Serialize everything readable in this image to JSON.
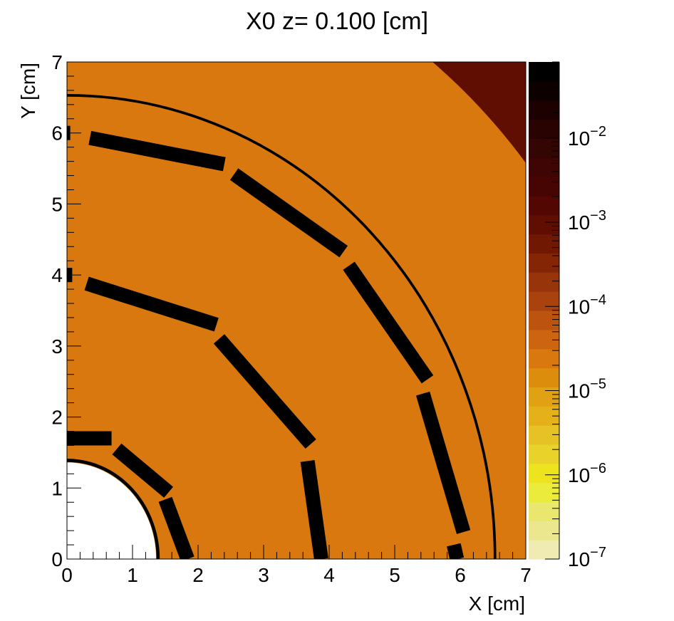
{
  "chart_data": {
    "type": "heatmap",
    "title": "X0 z=  0.100 [cm]",
    "xlabel": "X [cm]",
    "ylabel": "Y [cm]",
    "xlim": [
      0,
      7
    ],
    "ylim": [
      0,
      7
    ],
    "x_ticks": [
      "0",
      "1",
      "2",
      "3",
      "4",
      "5",
      "6",
      "7"
    ],
    "y_ticks": [
      "0",
      "1",
      "2",
      "3",
      "4",
      "5",
      "6",
      "7"
    ],
    "colorbar": {
      "scale": "log",
      "range": [
        1e-07,
        0.08
      ],
      "tick_bases": [
        "10",
        "10",
        "10",
        "10",
        "10",
        "10"
      ],
      "tick_exponents": [
        "−7",
        "−6",
        "−5",
        "−4",
        "−3",
        "−2"
      ],
      "palette": [
        "#f0ebb2",
        "#ebe78f",
        "#e9e76e",
        "#ebeb3b",
        "#eee31f",
        "#e9d22a",
        "#e6c226",
        "#e4b11b",
        "#e0a214",
        "#dd8d0c",
        "#d9780e",
        "#cc6410",
        "#bc5410",
        "#aa420d",
        "#983409",
        "#842606",
        "#711803",
        "#600e02",
        "#520702",
        "#460402",
        "#3e0504",
        "#330503",
        "#290302",
        "#1d0101",
        "#0d0000",
        "#000000"
      ]
    },
    "background_value": 3e-05,
    "regions": [
      {
        "name": "beam-pipe-hole",
        "shape": "disc",
        "r": 1.36,
        "value": 0
      },
      {
        "name": "beam-pipe-wall",
        "shape": "ring",
        "r": 1.39,
        "thickness": 0.05,
        "value": 0.05
      },
      {
        "name": "outer-shell",
        "shape": "ring",
        "r": 6.53,
        "thickness": 0.04,
        "value": 0.05
      },
      {
        "name": "far-corner",
        "shape": "outside-radius",
        "r": 8.95,
        "value": 0.001
      },
      {
        "name": "layer-1-staves",
        "shape": "staves",
        "value": 0.05,
        "ladders": [
          {
            "x1": 0.0,
            "y1": 1.7,
            "x2": 0.68,
            "y2": 1.7
          },
          {
            "x1": 0.76,
            "y1": 1.55,
            "x2": 1.55,
            "y2": 0.94
          },
          {
            "x1": 1.5,
            "y1": 0.84,
            "x2": 1.84,
            "y2": 0.0
          }
        ]
      },
      {
        "name": "layer-2-staves",
        "shape": "staves",
        "value": 0.05,
        "ladders": [
          {
            "x1": 0.0,
            "y1": 4.0,
            "x2": 0.08,
            "y2": 4.0
          },
          {
            "x1": 0.3,
            "y1": 3.88,
            "x2": 2.28,
            "y2": 3.3
          },
          {
            "x1": 2.32,
            "y1": 3.1,
            "x2": 3.72,
            "y2": 1.62
          },
          {
            "x1": 3.67,
            "y1": 1.38,
            "x2": 3.88,
            "y2": 0.0
          }
        ]
      },
      {
        "name": "layer-3-staves",
        "shape": "staves",
        "value": 0.05,
        "ladders": [
          {
            "x1": 0.0,
            "y1": 6.0,
            "x2": 0.05,
            "y2": 6.0
          },
          {
            "x1": 0.35,
            "y1": 5.93,
            "x2": 2.4,
            "y2": 5.56
          },
          {
            "x1": 2.55,
            "y1": 5.42,
            "x2": 4.22,
            "y2": 4.33
          },
          {
            "x1": 4.3,
            "y1": 4.13,
            "x2": 5.5,
            "y2": 2.53
          },
          {
            "x1": 5.43,
            "y1": 2.33,
            "x2": 6.05,
            "y2": 0.38
          },
          {
            "x1": 5.9,
            "y1": 0.2,
            "x2": 5.95,
            "y2": 0.0
          }
        ]
      }
    ]
  }
}
